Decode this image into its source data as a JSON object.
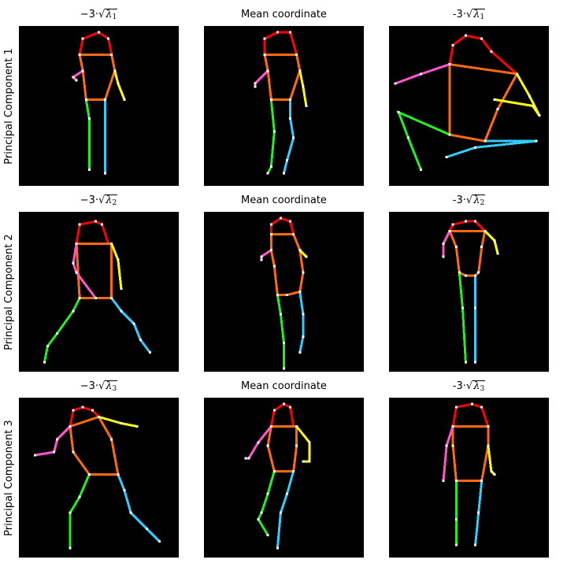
{
  "row_labels": [
    "Principal Component 1",
    "Principal Component 2",
    "Principal Component 3"
  ],
  "panel_titles": [
    [
      "−3·√λ1",
      "Mean coordinate",
      "-3·√λ1"
    ],
    [
      "−3·√λ2",
      "Mean coordinate",
      "-3·√λ2"
    ],
    [
      "−3·√λ3",
      "Mean coordinate",
      "-3·√λ3"
    ]
  ],
  "title_parts": {
    "neg_prefix_left": "−3·",
    "neg_prefix_right": "-3·",
    "lambda": "λ",
    "subs": [
      "1",
      "2",
      "3"
    ],
    "mean": "Mean coordinate"
  },
  "colors": {
    "head": "#ff0000",
    "torso": "#ff6a10",
    "left_arm": "#ff55cc",
    "right_arm": "#ffff00",
    "left_leg": "#22ee22",
    "right_leg": "#33ccff",
    "joint": "#ffffff",
    "background": "#000000"
  },
  "chart_data": {
    "type": "scatter",
    "description_of_grid": "3x3 grid of skeleton poses, each panel a 50x50 coordinate space",
    "grid": false,
    "xlim": [
      0,
      50
    ],
    "ylim": [
      50,
      0
    ],
    "limb_groups": [
      "head",
      "torso",
      "left_arm",
      "right_arm",
      "left_leg",
      "right_leg"
    ],
    "panels": [
      {
        "row": 1,
        "col": 1,
        "limbs": {
          "head": [
            [
              19,
              9
            ],
            [
              20,
              4
            ],
            [
              25,
              2
            ],
            [
              28,
              4
            ],
            [
              29,
              9
            ]
          ],
          "torso": [
            [
              19,
              9
            ],
            [
              29,
              9
            ],
            [
              30,
              14
            ],
            [
              27,
              23
            ],
            [
              21,
              23
            ],
            [
              20,
              14
            ],
            [
              19,
              9
            ]
          ],
          "left_arm": [
            [
              20,
              14
            ],
            [
              17,
              16
            ],
            [
              18,
              17
            ]
          ],
          "right_arm": [
            [
              30,
              14
            ],
            [
              31,
              18
            ],
            [
              33,
              23
            ]
          ],
          "left_leg": [
            [
              21,
              23
            ],
            [
              22,
              29
            ],
            [
              22,
              45
            ]
          ],
          "right_leg": [
            [
              27,
              23
            ],
            [
              27,
              46
            ]
          ]
        }
      },
      {
        "row": 1,
        "col": 2,
        "limbs": {
          "head": [
            [
              19,
              9
            ],
            [
              19,
              4
            ],
            [
              23,
              2
            ],
            [
              27,
              2
            ],
            [
              29,
              9
            ]
          ],
          "torso": [
            [
              19,
              9
            ],
            [
              29,
              9
            ],
            [
              30,
              14
            ],
            [
              27,
              23
            ],
            [
              21,
              23
            ],
            [
              20,
              14
            ],
            [
              19,
              9
            ]
          ],
          "left_arm": [
            [
              20,
              14
            ],
            [
              16,
              18
            ],
            [
              16,
              19
            ]
          ],
          "right_arm": [
            [
              30,
              14
            ],
            [
              31,
              19
            ],
            [
              32,
              25
            ]
          ],
          "left_leg": [
            [
              21,
              23
            ],
            [
              22,
              33
            ],
            [
              21,
              44
            ],
            [
              20,
              46
            ]
          ],
          "right_leg": [
            [
              27,
              23
            ],
            [
              27,
              29
            ],
            [
              28,
              35
            ],
            [
              26,
              42
            ],
            [
              25,
              46
            ]
          ]
        }
      },
      {
        "row": 1,
        "col": 3,
        "limbs": {
          "head": [
            [
              19,
              12
            ],
            [
              20,
              6
            ],
            [
              24,
              3
            ],
            [
              29,
              4
            ],
            [
              32,
              8
            ],
            [
              40,
              15
            ]
          ],
          "torso": [
            [
              19,
              12
            ],
            [
              40,
              15
            ],
            [
              34,
              26
            ],
            [
              30,
              36
            ],
            [
              19,
              34
            ],
            [
              19,
              12
            ]
          ],
          "left_arm": [
            [
              19,
              12
            ],
            [
              10,
              15
            ],
            [
              2,
              18
            ]
          ],
          "right_arm": [
            [
              40,
              15
            ],
            [
              44,
              22
            ],
            [
              47,
              28
            ],
            [
              45,
              25
            ],
            [
              33,
              23
            ]
          ],
          "left_leg": [
            [
              19,
              34
            ],
            [
              3,
              27
            ],
            [
              6,
              35
            ],
            [
              10,
              45
            ]
          ],
          "right_leg": [
            [
              30,
              36
            ],
            [
              46,
              36
            ],
            [
              27,
              38
            ],
            [
              18,
              41
            ]
          ]
        }
      },
      {
        "row": 2,
        "col": 1,
        "limbs": {
          "head": [
            [
              18,
              10
            ],
            [
              19,
              4
            ],
            [
              24,
              3
            ],
            [
              26,
              4
            ],
            [
              28,
              10
            ]
          ],
          "torso": [
            [
              18,
              10
            ],
            [
              29,
              10
            ],
            [
              29,
              27
            ],
            [
              19,
              27
            ],
            [
              18,
              10
            ]
          ],
          "left_arm": [
            [
              18,
              10
            ],
            [
              17,
              16
            ],
            [
              18,
              19
            ],
            [
              24,
              27
            ]
          ],
          "right_arm": [
            [
              29,
              10
            ],
            [
              31,
              15
            ],
            [
              32,
              24
            ]
          ],
          "left_leg": [
            [
              19,
              27
            ],
            [
              17,
              31
            ],
            [
              12,
              38
            ],
            [
              9,
              42
            ],
            [
              8,
              47
            ]
          ],
          "right_leg": [
            [
              29,
              27
            ],
            [
              32,
              31
            ],
            [
              36,
              35
            ],
            [
              38,
              40
            ],
            [
              41,
              44
            ]
          ]
        }
      },
      {
        "row": 2,
        "col": 2,
        "limbs": {
          "head": [
            [
              21,
              7
            ],
            [
              21,
              4
            ],
            [
              24,
              2
            ],
            [
              27,
              3
            ],
            [
              28,
              7
            ]
          ],
          "torso": [
            [
              21,
              7
            ],
            [
              28,
              7
            ],
            [
              30,
              12
            ],
            [
              31,
              19
            ],
            [
              30,
              25
            ],
            [
              26,
              26
            ],
            [
              23,
              26
            ],
            [
              22,
              17
            ],
            [
              21,
              12
            ],
            [
              21,
              7
            ]
          ],
          "left_arm": [
            [
              21,
              12
            ],
            [
              18,
              14
            ],
            [
              18,
              15
            ]
          ],
          "right_arm": [
            [
              30,
              12
            ],
            [
              32,
              14
            ]
          ],
          "left_leg": [
            [
              23,
              26
            ],
            [
              24,
              32
            ],
            [
              25,
              41
            ],
            [
              25,
              49
            ]
          ],
          "right_leg": [
            [
              30,
              25
            ],
            [
              31,
              32
            ],
            [
              31,
              39
            ],
            [
              30,
              44
            ]
          ]
        }
      },
      {
        "row": 2,
        "col": 3,
        "limbs": {
          "head": [
            [
              19,
              6
            ],
            [
              20,
              4
            ],
            [
              24,
              3
            ],
            [
              27,
              3
            ],
            [
              30,
              6
            ]
          ],
          "torso": [
            [
              19,
              6
            ],
            [
              30,
              6
            ],
            [
              29,
              11
            ],
            [
              28,
              19
            ],
            [
              27,
              20
            ],
            [
              24,
              20
            ],
            [
              22,
              19
            ],
            [
              21,
              11
            ],
            [
              19,
              6
            ]
          ],
          "left_arm": [
            [
              19,
              6
            ],
            [
              17,
              10
            ],
            [
              17,
              14
            ]
          ],
          "right_arm": [
            [
              30,
              6
            ],
            [
              33,
              9
            ],
            [
              34,
              13
            ]
          ],
          "left_leg": [
            [
              22,
              19
            ],
            [
              23,
              30
            ],
            [
              24,
              47
            ]
          ],
          "right_leg": [
            [
              27,
              20
            ],
            [
              27,
              30
            ],
            [
              27,
              47
            ]
          ]
        }
      },
      {
        "row": 3,
        "col": 1,
        "limbs": {
          "head": [
            [
              16,
              9
            ],
            [
              17,
              4
            ],
            [
              20,
              3
            ],
            [
              23,
              4
            ],
            [
              25,
              6
            ]
          ],
          "torso": [
            [
              16,
              9
            ],
            [
              25,
              6
            ],
            [
              29,
              13
            ],
            [
              31,
              24
            ],
            [
              22,
              24
            ],
            [
              17,
              17
            ],
            [
              16,
              9
            ]
          ],
          "left_arm": [
            [
              16,
              9
            ],
            [
              12,
              13
            ],
            [
              11,
              17
            ],
            [
              5,
              18
            ]
          ],
          "right_arm": [
            [
              25,
              6
            ],
            [
              32,
              8
            ],
            [
              37,
              9
            ]
          ],
          "left_leg": [
            [
              22,
              24
            ],
            [
              19,
              31
            ],
            [
              16,
              36
            ],
            [
              16,
              47
            ]
          ],
          "right_leg": [
            [
              31,
              24
            ],
            [
              33,
              29
            ],
            [
              35,
              36
            ],
            [
              40,
              41
            ],
            [
              44,
              45
            ]
          ]
        }
      },
      {
        "row": 3,
        "col": 2,
        "limbs": {
          "head": [
            [
              21,
              9
            ],
            [
              22,
              4
            ],
            [
              25,
              2
            ],
            [
              27,
              3
            ],
            [
              28,
              9
            ]
          ],
          "torso": [
            [
              21,
              9
            ],
            [
              29,
              9
            ],
            [
              29,
              15
            ],
            [
              28,
              23
            ],
            [
              22,
              23
            ],
            [
              20,
              15
            ],
            [
              21,
              9
            ]
          ],
          "left_arm": [
            [
              21,
              9
            ],
            [
              17,
              14
            ],
            [
              14,
              19
            ],
            [
              13,
              19
            ]
          ],
          "right_arm": [
            [
              29,
              9
            ],
            [
              33,
              14
            ],
            [
              33,
              20
            ],
            [
              31,
              20
            ]
          ],
          "left_leg": [
            [
              22,
              23
            ],
            [
              20,
              30
            ],
            [
              18,
              36
            ],
            [
              17,
              38
            ],
            [
              20,
              43
            ]
          ],
          "right_leg": [
            [
              28,
              23
            ],
            [
              26,
              30
            ],
            [
              24,
              36
            ],
            [
              23,
              47
            ]
          ]
        }
      },
      {
        "row": 3,
        "col": 3,
        "limbs": {
          "head": [
            [
              20,
              9
            ],
            [
              21,
              3
            ],
            [
              26,
              2
            ],
            [
              29,
              3
            ],
            [
              31,
              9
            ]
          ],
          "torso": [
            [
              20,
              9
            ],
            [
              31,
              9
            ],
            [
              31,
              15
            ],
            [
              29,
              26
            ],
            [
              21,
              26
            ],
            [
              20,
              15
            ],
            [
              20,
              9
            ]
          ],
          "left_arm": [
            [
              20,
              9
            ],
            [
              18,
              15
            ],
            [
              17,
              26
            ]
          ],
          "right_arm": [
            [
              31,
              15
            ],
            [
              32,
              23
            ],
            [
              33,
              24
            ]
          ],
          "left_leg": [
            [
              21,
              26
            ],
            [
              21,
              38
            ],
            [
              21,
              46
            ]
          ],
          "right_leg": [
            [
              29,
              26
            ],
            [
              28,
              36
            ],
            [
              27,
              46
            ]
          ]
        }
      }
    ]
  }
}
